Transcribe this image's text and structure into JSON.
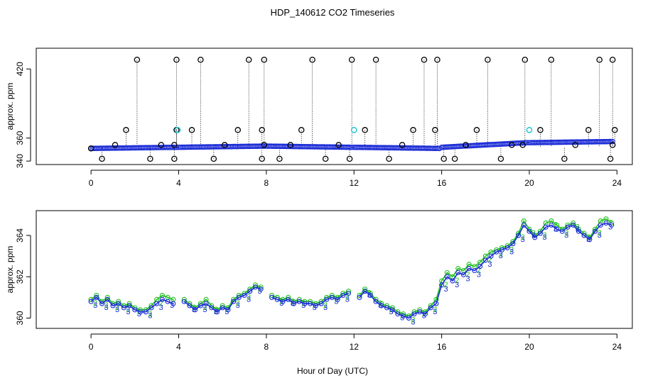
{
  "chart_data": [
    {
      "type": "scatter",
      "title": "HDP_140612  CO2 Timeseries",
      "xlabel": "",
      "ylabel": "approx. ppm",
      "xlim": [
        -2.5,
        24.7
      ],
      "ylim": [
        337,
        438
      ],
      "xticks": [
        0,
        4,
        8,
        12,
        16,
        20,
        24
      ],
      "yticks": [
        340,
        360,
        420
      ],
      "ytick_labels": [
        "340",
        "360",
        "420"
      ],
      "colors": {
        "main": "#1a2bd6",
        "highlight": "#22c8d8",
        "outlier": "#000000"
      },
      "baseline_series": [
        {
          "x": [
            0.0,
            3.9
          ],
          "y": [
            351,
            352
          ]
        },
        {
          "x": [
            4.0,
            7.9
          ],
          "y": [
            352,
            353
          ]
        },
        {
          "x": [
            8.0,
            11.9
          ],
          "y": [
            353,
            352
          ]
        },
        {
          "x": [
            12.0,
            15.9
          ],
          "y": [
            352,
            351
          ]
        },
        {
          "x": [
            16.0,
            19.9
          ],
          "y": [
            352,
            356
          ]
        },
        {
          "x": [
            20.0,
            23.8
          ],
          "y": [
            356,
            357
          ]
        }
      ],
      "outliers": {
        "x": [
          0.0,
          0.5,
          1.1,
          1.6,
          2.1,
          2.7,
          3.2,
          3.8,
          3.8,
          3.9,
          3.9,
          4.6,
          5.0,
          5.6,
          6.1,
          6.7,
          7.2,
          7.8,
          7.9,
          7.9,
          7.8,
          8.6,
          9.1,
          9.6,
          10.1,
          10.7,
          11.3,
          11.8,
          11.9,
          12.5,
          13.0,
          13.6,
          14.2,
          14.7,
          15.2,
          15.7,
          15.8,
          16.1,
          16.6,
          17.1,
          17.6,
          18.1,
          18.7,
          19.2,
          19.7,
          19.8,
          20.5,
          21.0,
          21.6,
          22.1,
          22.7,
          23.2,
          23.7,
          23.8,
          23.8,
          23.9
        ],
        "y": [
          351,
          342,
          354,
          367,
          428,
          342,
          354,
          342,
          354,
          367,
          428,
          367,
          428,
          342,
          354,
          367,
          428,
          342,
          354,
          428,
          367,
          342,
          354,
          367,
          428,
          342,
          354,
          342,
          428,
          367,
          428,
          342,
          354,
          367,
          428,
          367,
          428,
          342,
          342,
          354,
          367,
          428,
          342,
          354,
          354,
          428,
          367,
          428,
          342,
          354,
          367,
          428,
          342,
          354,
          428,
          367
        ]
      },
      "highlights": {
        "x": [
          3.95,
          12.0,
          20.0
        ],
        "y": [
          367,
          367,
          367
        ]
      }
    },
    {
      "type": "line",
      "title": "",
      "xlabel": "Hour of Day (UTC)",
      "ylabel": "approx. ppm",
      "xlim": [
        -2.5,
        24.7
      ],
      "ylim": [
        359.5,
        365.2
      ],
      "xticks": [
        0,
        4,
        8,
        12,
        16,
        20,
        24
      ],
      "yticks": [
        360,
        362,
        364
      ],
      "ytick_labels": [
        "360",
        "362",
        "364"
      ],
      "colors": {
        "series_blue": "#1a2bd6",
        "series_green": "#20c020"
      },
      "series": [
        {
          "marker": "3",
          "x": [
            0.0,
            0.25,
            0.5,
            0.75,
            1.0,
            1.25,
            1.5,
            1.75,
            2.0,
            2.25,
            2.5,
            2.75,
            3.0,
            3.25,
            3.5,
            3.75,
            4.0,
            4.25,
            4.5,
            4.75,
            5.0,
            5.25,
            5.5,
            5.75,
            6.0,
            6.25,
            6.5,
            6.75,
            7.0,
            7.25,
            7.5,
            7.75,
            8.0,
            8.25,
            8.5,
            8.75,
            9.0,
            9.25,
            9.5,
            9.75,
            10.0,
            10.25,
            10.5,
            10.75,
            11.0,
            11.25,
            11.5,
            11.75,
            12.0,
            12.25,
            12.5,
            12.75,
            13.0,
            13.25,
            13.5,
            13.75,
            14.0,
            14.25,
            14.5,
            14.75,
            15.0,
            15.25,
            15.5,
            15.75,
            16.0,
            16.25,
            16.5,
            16.75,
            17.0,
            17.25,
            17.5,
            17.75,
            18.0,
            18.25,
            18.5,
            18.75,
            19.0,
            19.25,
            19.5,
            19.75,
            20.0,
            20.25,
            20.5,
            20.75,
            21.0,
            21.25,
            21.5,
            21.75,
            22.0,
            22.25,
            22.5,
            22.75,
            23.0,
            23.25,
            23.5,
            23.75
          ],
          "values": [
            360.8,
            361.0,
            360.7,
            360.9,
            360.6,
            360.7,
            360.5,
            360.6,
            360.4,
            360.3,
            360.3,
            360.5,
            360.7,
            360.9,
            360.8,
            360.7,
            null,
            360.8,
            360.6,
            360.4,
            360.6,
            360.7,
            360.5,
            360.3,
            360.5,
            360.4,
            360.8,
            361.0,
            361.1,
            361.3,
            361.5,
            361.4,
            null,
            361.0,
            360.9,
            360.8,
            360.9,
            360.7,
            360.8,
            360.7,
            360.7,
            360.6,
            360.7,
            360.9,
            361.0,
            360.9,
            361.1,
            361.2,
            null,
            361.0,
            361.3,
            361.1,
            360.8,
            360.6,
            360.5,
            360.4,
            360.2,
            360.1,
            360.0,
            360.2,
            360.3,
            360.2,
            360.5,
            360.7,
            361.6,
            362.0,
            361.8,
            362.2,
            362.1,
            362.4,
            362.3,
            362.5,
            362.8,
            363.0,
            363.2,
            363.3,
            363.4,
            363.6,
            364.0,
            364.5,
            364.2,
            363.9,
            364.1,
            364.4,
            364.5,
            364.3,
            364.2,
            364.4,
            364.5,
            364.2,
            364.0,
            363.8,
            364.2,
            364.5,
            364.6,
            364.5
          ]
        },
        {
          "marker": "2",
          "x": [
            0.0,
            0.25,
            0.5,
            0.75,
            1.0,
            1.25,
            1.5,
            1.75,
            2.0,
            2.25,
            2.5,
            2.75,
            3.0,
            3.25,
            3.5,
            3.75,
            4.0,
            4.25,
            4.5,
            4.75,
            5.0,
            5.25,
            5.5,
            5.75,
            6.0,
            6.25,
            6.5,
            6.75,
            7.0,
            7.25,
            7.5,
            7.75,
            8.0,
            8.25,
            8.5,
            8.75,
            9.0,
            9.25,
            9.5,
            9.75,
            10.0,
            10.25,
            10.5,
            10.75,
            11.0,
            11.25,
            11.5,
            11.75,
            12.0,
            12.25,
            12.5,
            12.75,
            13.0,
            13.25,
            13.5,
            13.75,
            14.0,
            14.25,
            14.5,
            14.75,
            15.0,
            15.25,
            15.5,
            15.75,
            16.0,
            16.25,
            16.5,
            16.75,
            17.0,
            17.25,
            17.5,
            17.75,
            18.0,
            18.25,
            18.5,
            18.75,
            19.0,
            19.25,
            19.5,
            19.75,
            20.0,
            20.25,
            20.5,
            20.75,
            21.0,
            21.25,
            21.5,
            21.75,
            22.0,
            22.25,
            22.5,
            22.75,
            23.0,
            23.25,
            23.5,
            23.75
          ],
          "values": [
            360.9,
            361.1,
            360.8,
            361.0,
            360.7,
            360.8,
            360.6,
            360.7,
            360.5,
            360.4,
            360.4,
            360.6,
            360.9,
            361.1,
            361.0,
            360.9,
            null,
            360.9,
            360.7,
            360.5,
            360.7,
            360.9,
            360.6,
            360.4,
            360.6,
            360.5,
            360.9,
            361.1,
            361.2,
            361.4,
            361.6,
            361.5,
            null,
            361.1,
            361.0,
            360.9,
            361.0,
            360.8,
            360.9,
            360.8,
            360.8,
            360.7,
            360.8,
            361.0,
            361.1,
            361.0,
            361.2,
            361.3,
            null,
            361.1,
            361.4,
            361.2,
            360.9,
            360.7,
            360.6,
            360.5,
            360.3,
            360.2,
            360.1,
            360.3,
            360.4,
            360.3,
            360.6,
            360.9,
            361.8,
            362.2,
            362.0,
            362.4,
            362.3,
            362.6,
            362.5,
            362.7,
            363.0,
            363.2,
            363.3,
            363.4,
            363.5,
            363.7,
            364.1,
            364.7,
            364.3,
            364.0,
            364.2,
            364.6,
            364.7,
            364.5,
            364.3,
            364.5,
            364.6,
            364.3,
            364.1,
            363.9,
            364.3,
            364.7,
            364.8,
            364.6
          ]
        }
      ]
    }
  ]
}
